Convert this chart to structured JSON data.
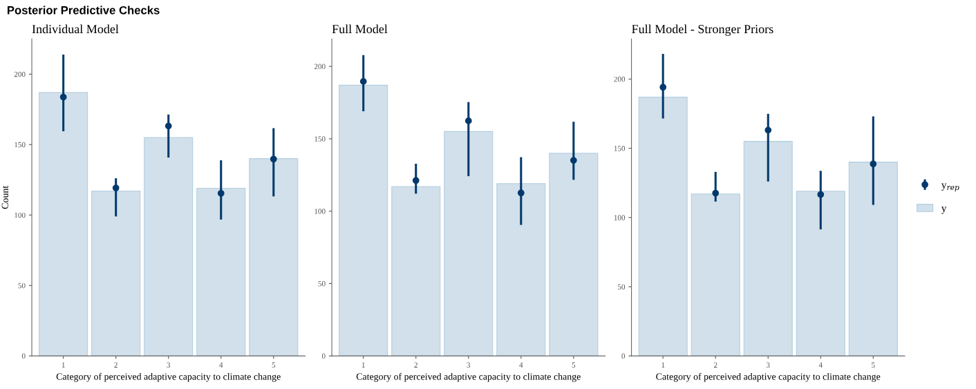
{
  "chart_data": [
    {
      "type": "bar",
      "title": "Individual Model",
      "xlabel": "Category of perceived adaptive capacity to climate change",
      "ylabel": "Count",
      "annotations": [
        "Posterior Predictive Checks"
      ],
      "categories": [
        "1",
        "2",
        "3",
        "4",
        "5"
      ],
      "ylim": [
        0,
        225
      ],
      "yticks": [
        0,
        50,
        100,
        150,
        200
      ],
      "grid": false,
      "legend": false,
      "series": [
        {
          "color": "#d1e0ea",
          "values": [
            187,
            117,
            155,
            119,
            140
          ]
        },
        {
          "type": "scatter",
          "color": "#03396c",
          "marker": "circle",
          "values": [
            183.7,
            119.2,
            163.2,
            115.4,
            139.7
          ],
          "errors": [
            [
              159.4,
              213.9
            ],
            [
              99.0,
              126.1
            ],
            [
              140.8,
              171.3
            ],
            [
              96.8,
              138.9
            ],
            [
              113.2,
              161.6
            ]
          ]
        }
      ]
    },
    {
      "type": "bar",
      "title": "Full Model",
      "xlabel": "Category of perceived adaptive capacity to climate change",
      "categories": [
        "1",
        "2",
        "3",
        "4",
        "5"
      ],
      "ylim": [
        0,
        219
      ],
      "yticks": [
        0,
        50,
        100,
        150,
        200
      ],
      "grid": false,
      "legend": false,
      "series": [
        {
          "color": "#d1e0ea",
          "values": [
            187,
            117,
            155,
            119,
            140
          ]
        },
        {
          "type": "scatter",
          "color": "#03396c",
          "marker": "circle",
          "values": [
            189.6,
            121.2,
            162.4,
            112.6,
            135.1
          ],
          "errors": [
            [
              169.0,
              207.8
            ],
            [
              112.1,
              132.7
            ],
            [
              124.2,
              175.3
            ],
            [
              90.5,
              137.3
            ],
            [
              121.6,
              161.8
            ]
          ]
        }
      ]
    },
    {
      "type": "bar",
      "title": "Full Model - Stronger Priors",
      "xlabel": "Category of perceived adaptive capacity to climate change",
      "categories": [
        "1",
        "2",
        "3",
        "4",
        "5"
      ],
      "ylim": [
        0,
        229
      ],
      "yticks": [
        0,
        50,
        100,
        150,
        200
      ],
      "grid": false,
      "legend": "right",
      "series": [
        {
          "name": "y",
          "color": "#d1e0ea",
          "values": [
            187,
            117,
            155,
            119,
            140
          ]
        },
        {
          "type": "scatter",
          "name": "y$_{rep}$",
          "color": "#03396c",
          "marker": "circle",
          "values": [
            194.1,
            117.6,
            163.1,
            116.6,
            138.7
          ],
          "errors": [
            [
              171.5,
              218.2
            ],
            [
              111.5,
              133.0
            ],
            [
              126.0,
              174.9
            ],
            [
              91.4,
              133.7
            ],
            [
              109.1,
              173.0
            ]
          ]
        }
      ]
    }
  ]
}
